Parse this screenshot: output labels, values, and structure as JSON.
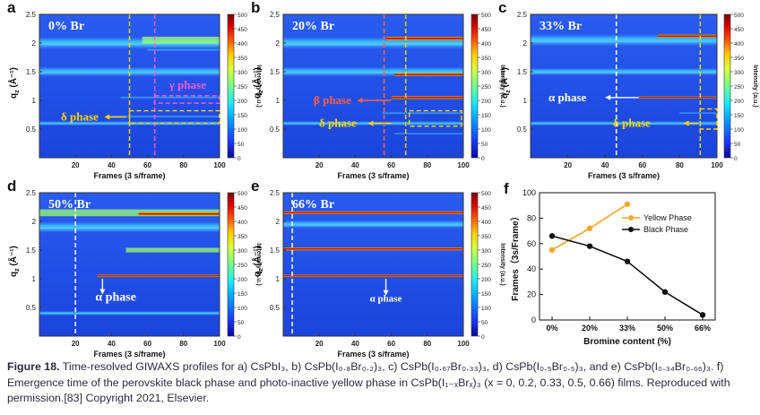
{
  "panels": [
    {
      "letter": "a",
      "label": "0% Br",
      "ticks_y": [
        "2.5",
        "2",
        "1.5",
        "1",
        "0.5"
      ],
      "ticks_x": [
        "20",
        "40",
        "60",
        "80",
        "100"
      ],
      "phases": [
        "γ phase",
        "δ phase"
      ]
    },
    {
      "letter": "b",
      "label": "20% Br",
      "phases": [
        "β phase",
        "δ phase"
      ]
    },
    {
      "letter": "c",
      "label": "33% Br",
      "phases": [
        "α phase",
        "δ phase"
      ]
    },
    {
      "letter": "d",
      "label": "50% Br",
      "phases": [
        "α phase"
      ]
    },
    {
      "letter": "e",
      "label": "66% Br",
      "phases": [
        "α phase"
      ]
    }
  ],
  "axis": {
    "ylabel": "q",
    "ylabel_sub": "z",
    "ylabel_unit": " (Å⁻¹)",
    "xlabel": "Frames (3 s/frame)"
  },
  "colorbar": {
    "label": "Intensity (a.u.)",
    "ticks": [
      "500",
      "450",
      "400",
      "350",
      "300",
      "250",
      "200",
      "150",
      "100",
      "50",
      "0"
    ],
    "colors": [
      "#7a0000",
      "#d90000",
      "#ff5500",
      "#ffcc00",
      "#d8ff3a",
      "#70ff8a",
      "#18e8ff",
      "#0096ff",
      "#1c3cff",
      "#08089c"
    ]
  },
  "chart_data": {
    "type": "line",
    "letter": "f",
    "xlabel": "Bromine content (%)",
    "ylabel": "Frames（3s/Frame）",
    "categories": [
      "0%",
      "20%",
      "33%",
      "50%",
      "66%"
    ],
    "ylim": [
      0,
      100
    ],
    "yticks": [
      "0",
      "20",
      "40",
      "60",
      "80",
      "100"
    ],
    "series": [
      {
        "name": "Yellow Phase",
        "color": "#f5a623",
        "values": [
          55,
          72,
          91,
          null,
          null
        ]
      },
      {
        "name": "Black Phase",
        "color": "#111111",
        "values": [
          66,
          58,
          46,
          22,
          4
        ]
      }
    ],
    "legend": "top-right"
  },
  "caption": {
    "fig": "Figure 18.",
    "text": "Time-resolved GIWAXS profiles for a) CsPbI₃, b) CsPb(I₀.₈Br₀.₂)₃, c) CsPb(I₀.₆₇Br₀.₃₃)₃, d) CsPb(I₀.₅Br₀.₅)₃, and e) CsPb(I₀.₃₄Br₀.₆₆)₃. f) Emergence time of the perovskite black phase and photo-inactive yellow phase in CsPb(I₁₋ₓBrₓ)₃ (x = 0, 0.2, 0.33, 0.5, 0.66) films. Reproduced with permission.[83] Copyright 2021, Elsevier."
  }
}
